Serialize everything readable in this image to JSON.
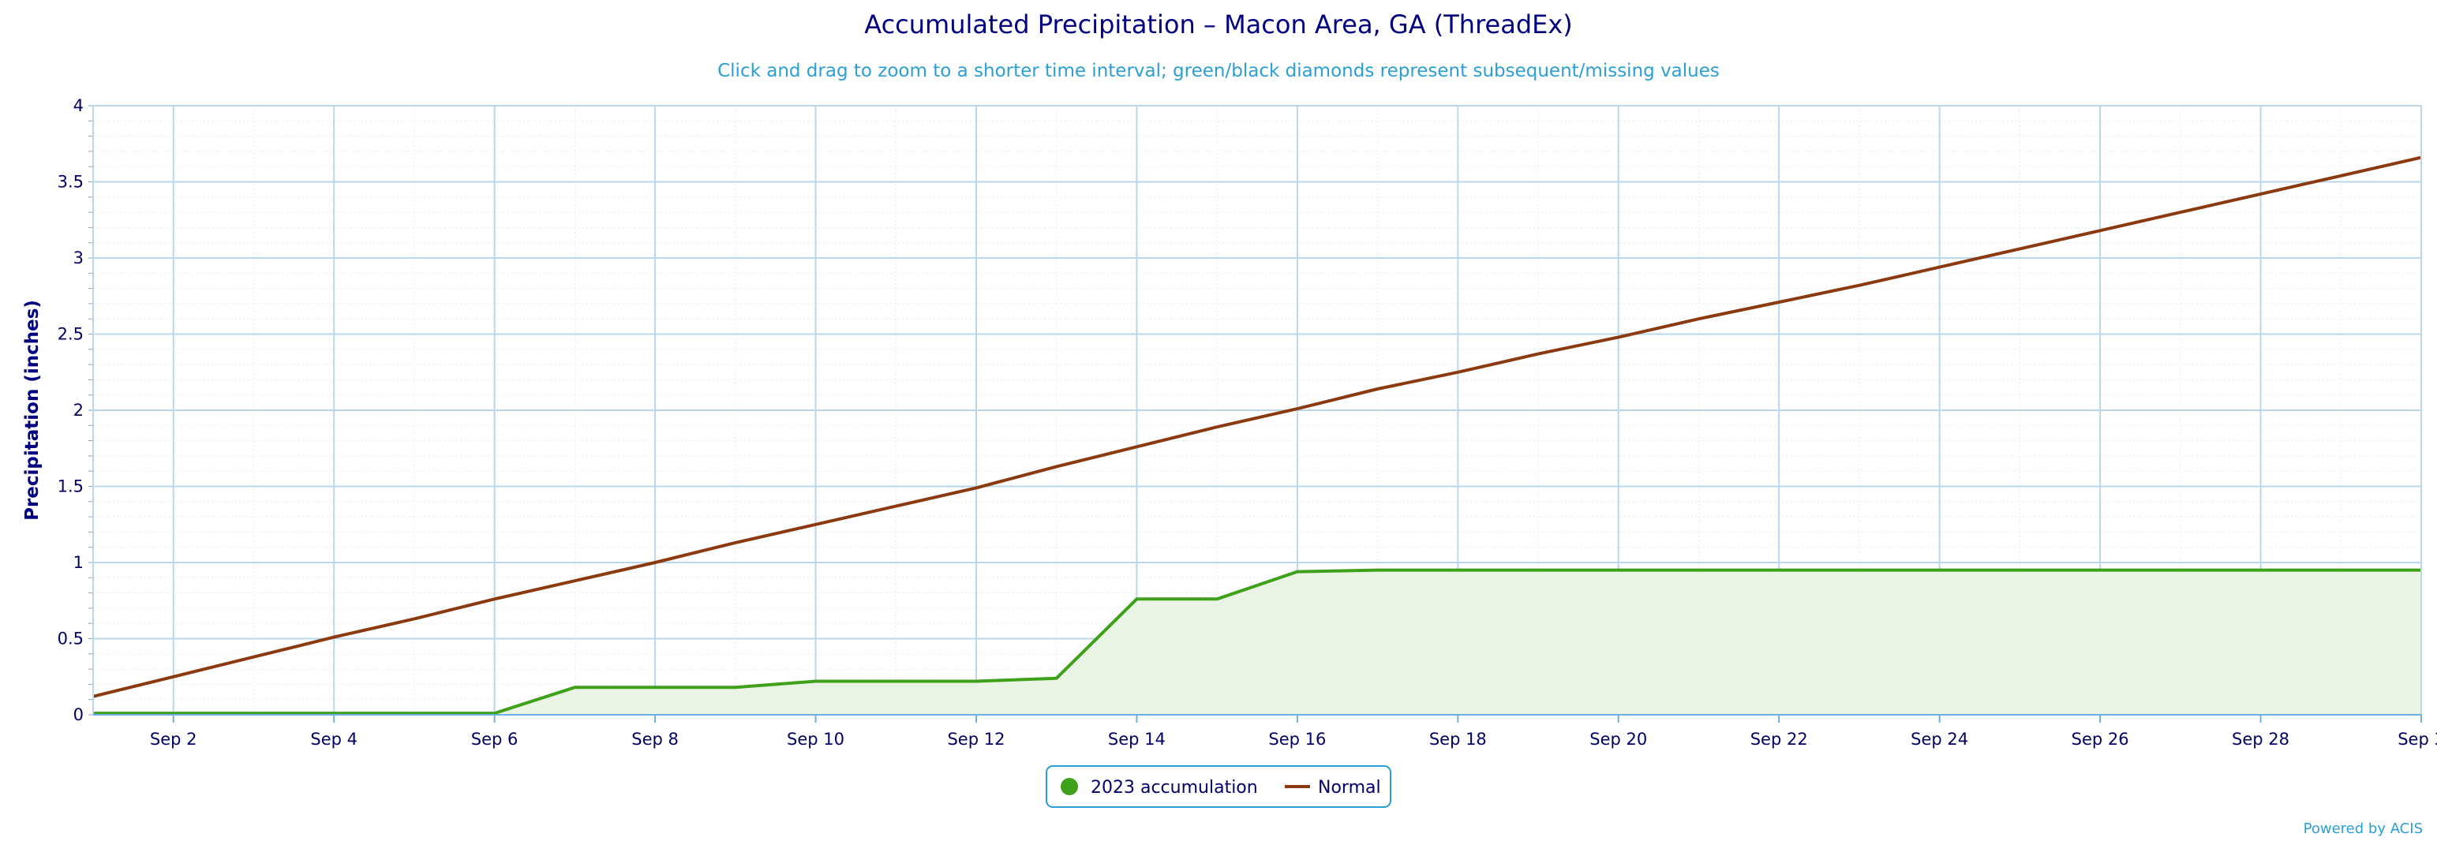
{
  "chart_data": {
    "type": "line",
    "title": "Accumulated Precipitation – Macon Area, GA (ThreadEx)",
    "subtitle": "Click and drag to zoom to a shorter time interval; green/black diamonds represent subsequent/missing values",
    "ylabel": "Precipitation (inches)",
    "xlabel": "",
    "ylim": [
      0,
      4
    ],
    "yticks": [
      "0",
      "0.5",
      "1",
      "1.5",
      "2",
      "2.5",
      "3",
      "3.5",
      "4"
    ],
    "xlim": [
      1,
      30
    ],
    "xticks": [
      "Sep 2",
      "Sep 4",
      "Sep 6",
      "Sep 8",
      "Sep 10",
      "Sep 12",
      "Sep 14",
      "Sep 16",
      "Sep 18",
      "Sep 20",
      "Sep 22",
      "Sep 24",
      "Sep 26",
      "Sep 28",
      "Sep 3"
    ],
    "grid": true,
    "legend_position": "bottom-center",
    "series": [
      {
        "name": "2023 accumulation",
        "kind": "area",
        "color": "#3fa11a",
        "fill": "#e9f4e4",
        "x": [
          1,
          2,
          3,
          4,
          5,
          6,
          7,
          8,
          9,
          10,
          11,
          12,
          13,
          14,
          15,
          16,
          17,
          18,
          19,
          20,
          21,
          22,
          23,
          24,
          25,
          26,
          27,
          28,
          29,
          30
        ],
        "y": [
          0.01,
          0.01,
          0.01,
          0.01,
          0.01,
          0.01,
          0.18,
          0.18,
          0.18,
          0.22,
          0.22,
          0.22,
          0.24,
          0.76,
          0.76,
          0.94,
          0.95,
          0.95,
          0.95,
          0.95,
          0.95,
          0.95,
          0.95,
          0.95,
          0.95,
          0.95,
          0.95,
          0.95,
          0.95,
          0.95
        ]
      },
      {
        "name": "Normal",
        "kind": "line",
        "color": "#8b3a10",
        "x": [
          1,
          2,
          3,
          4,
          5,
          6,
          7,
          8,
          9,
          10,
          11,
          12,
          13,
          14,
          15,
          16,
          17,
          18,
          19,
          20,
          21,
          22,
          23,
          24,
          25,
          26,
          27,
          28,
          29,
          30
        ],
        "y": [
          0.12,
          0.25,
          0.38,
          0.51,
          0.63,
          0.76,
          0.88,
          1.0,
          1.13,
          1.25,
          1.37,
          1.49,
          1.63,
          1.76,
          1.89,
          2.01,
          2.14,
          2.25,
          2.37,
          2.48,
          2.6,
          2.71,
          2.82,
          2.94,
          3.06,
          3.18,
          3.3,
          3.42,
          3.54,
          3.66
        ]
      }
    ],
    "credit": "Powered by ACIS",
    "colors": {
      "grid": "#b9d6ea",
      "axis": "#6bb0e0",
      "legend_border": "#2a9fd6"
    }
  }
}
